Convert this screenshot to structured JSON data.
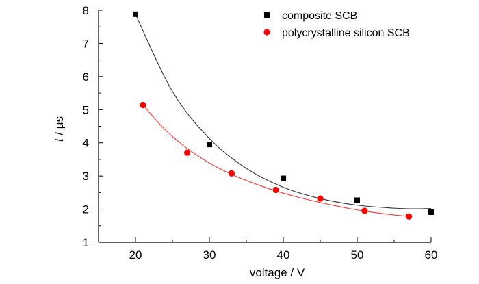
{
  "chart_data": {
    "type": "scatter",
    "xlabel": "voltage / V",
    "ylabel": "t / μs",
    "ylabel_parts": {
      "symbol": "t",
      "unit": " / μs"
    },
    "xlim": [
      15,
      60
    ],
    "ylim": [
      1,
      8
    ],
    "x_ticks": [
      20,
      30,
      40,
      50,
      60
    ],
    "y_ticks": [
      1,
      2,
      3,
      4,
      5,
      6,
      7,
      8
    ],
    "grid": false,
    "legend_position": "top-right",
    "series": [
      {
        "name": "composite SCB",
        "marker": "square",
        "color": "#000000",
        "fit_color": "#333333",
        "x": [
          20,
          30,
          40,
          50,
          60
        ],
        "y": [
          7.88,
          3.95,
          2.93,
          2.27,
          1.91
        ],
        "fit_curve": {
          "x": [
            20,
            25,
            30,
            35,
            40,
            45,
            50,
            55,
            58,
            60
          ],
          "y": [
            7.88,
            5.55,
            4.13,
            3.23,
            2.66,
            2.32,
            2.12,
            2.03,
            2.01,
            2.02
          ]
        }
      },
      {
        "name": "polycrystalline silicon SCB",
        "marker": "circle",
        "color": "#ff0000",
        "fit_color": "#ff3333",
        "x": [
          21,
          27,
          33,
          39,
          45,
          51,
          57
        ],
        "y": [
          5.14,
          3.7,
          3.08,
          2.58,
          2.32,
          1.95,
          1.78
        ],
        "fit_curve": {
          "x": [
            21,
            24,
            27,
            30,
            33,
            36,
            39,
            42,
            45,
            48,
            51,
            54,
            57
          ],
          "y": [
            5.14,
            4.4,
            3.83,
            3.39,
            3.05,
            2.78,
            2.55,
            2.36,
            2.2,
            2.06,
            1.94,
            1.85,
            1.78
          ]
        }
      }
    ]
  }
}
